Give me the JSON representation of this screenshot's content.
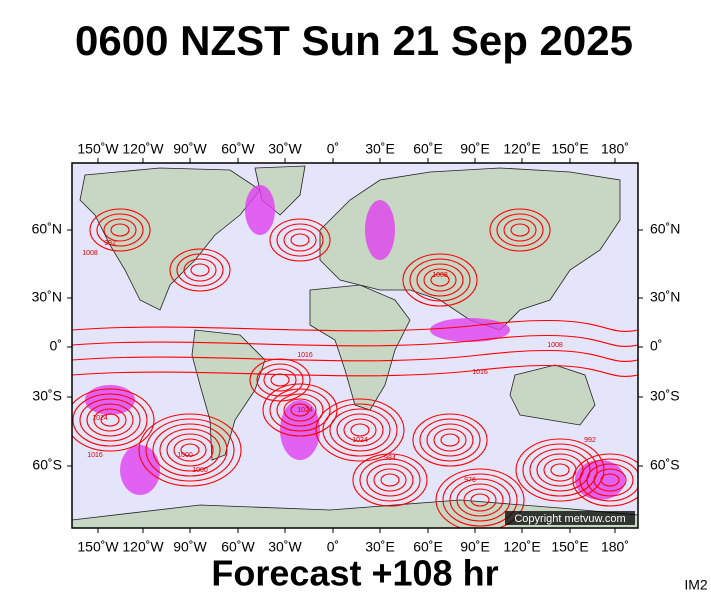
{
  "header": {
    "title": "0600 NZST Sun 21 Sep 2025"
  },
  "map": {
    "longitude_labels": [
      "150˚W",
      "120˚W",
      "90˚W",
      "60˚W",
      "30˚W",
      "0˚",
      "30˚E",
      "60˚E",
      "90˚E",
      "120˚E",
      "150˚E",
      "180˚"
    ],
    "latitude_labels": [
      "60˚N",
      "30˚N",
      "0˚",
      "30˚S",
      "60˚S"
    ],
    "isobar_labels": [
      "1016",
      "1024",
      "1008",
      "992",
      "1000",
      "1016",
      "1024",
      "1008",
      "984",
      "976",
      "1016",
      "1008",
      "1024",
      "992",
      "1000"
    ],
    "copyright": "Copyright metvuw.com"
  },
  "footer": {
    "forecast": "Forecast +108 hr",
    "code": "IM2"
  }
}
